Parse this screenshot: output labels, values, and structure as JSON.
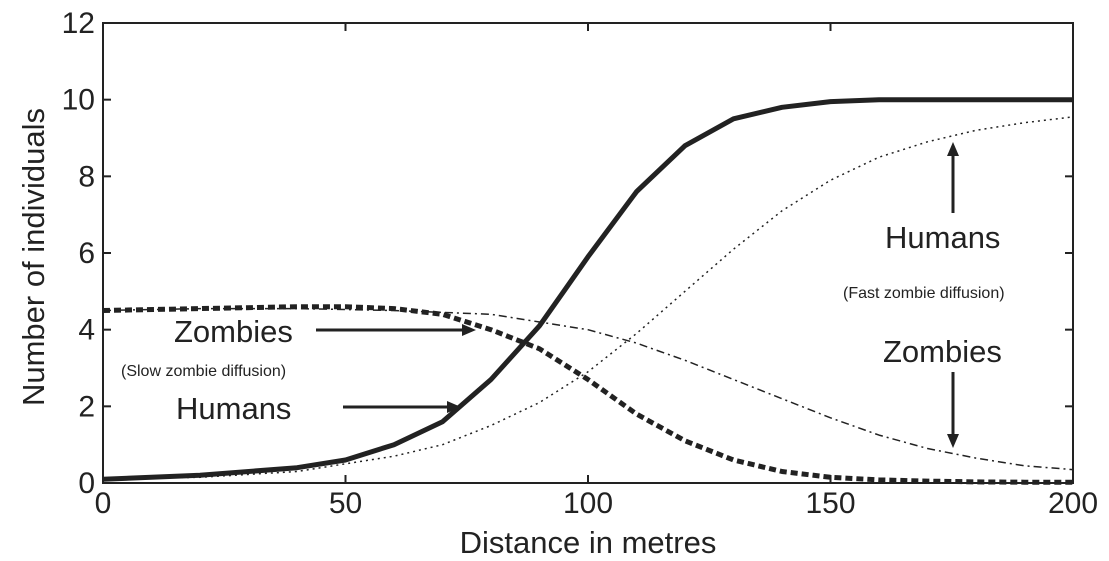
{
  "chart_data": {
    "type": "line",
    "title": "",
    "xlabel": "Distance in metres",
    "ylabel": "Number of individuals",
    "xlim": [
      0,
      200
    ],
    "ylim": [
      0,
      12
    ],
    "x_ticks": [
      "0",
      "50",
      "100",
      "150",
      "200"
    ],
    "y_ticks": [
      "0",
      "2",
      "4",
      "6",
      "8",
      "10",
      "12"
    ],
    "grid": false,
    "legend": "none",
    "series": [
      {
        "style": "solid",
        "x": [
          0,
          20,
          40,
          50,
          60,
          70,
          80,
          90,
          95,
          100,
          110,
          120,
          130,
          140,
          150,
          160,
          170,
          180,
          190,
          200
        ],
        "y": [
          0.1,
          0.2,
          0.4,
          0.6,
          1.0,
          1.6,
          2.7,
          4.1,
          5.0,
          5.9,
          7.6,
          8.8,
          9.5,
          9.8,
          9.95,
          10.0,
          10.0,
          10.0,
          10.0,
          10.0
        ]
      },
      {
        "style": "dotted",
        "x": [
          0,
          20,
          40,
          50,
          60,
          70,
          80,
          90,
          100,
          110,
          120,
          130,
          140,
          150,
          160,
          170,
          180,
          190,
          200
        ],
        "y": [
          0.1,
          0.15,
          0.3,
          0.5,
          0.7,
          1.0,
          1.5,
          2.1,
          2.9,
          3.9,
          5.0,
          6.1,
          7.1,
          7.9,
          8.5,
          8.9,
          9.2,
          9.4,
          9.55
        ]
      },
      {
        "style": "dashed",
        "x": [
          0,
          20,
          40,
          50,
          60,
          70,
          80,
          90,
          100,
          110,
          120,
          130,
          140,
          150,
          160,
          170,
          180,
          190,
          200
        ],
        "y": [
          4.5,
          4.55,
          4.6,
          4.6,
          4.55,
          4.4,
          4.0,
          3.5,
          2.7,
          1.8,
          1.1,
          0.6,
          0.3,
          0.15,
          0.08,
          0.05,
          0.03,
          0.02,
          0.02
        ]
      },
      {
        "style": "dashdot",
        "x": [
          0,
          20,
          40,
          60,
          80,
          90,
          100,
          110,
          120,
          130,
          140,
          150,
          160,
          170,
          180,
          190,
          200
        ],
        "y": [
          4.5,
          4.55,
          4.55,
          4.5,
          4.4,
          4.2,
          4.0,
          3.65,
          3.2,
          2.7,
          2.2,
          1.7,
          1.25,
          0.9,
          0.65,
          0.45,
          0.35
        ]
      }
    ],
    "annotations": {
      "zombies_slow": "Zombies",
      "slow_sub": "(Slow zombie diffusion)",
      "humans_slow": "Humans",
      "humans_fast": "Humans",
      "fast_sub": "(Fast zombie diffusion)",
      "zombies_fast": "Zombies"
    }
  }
}
